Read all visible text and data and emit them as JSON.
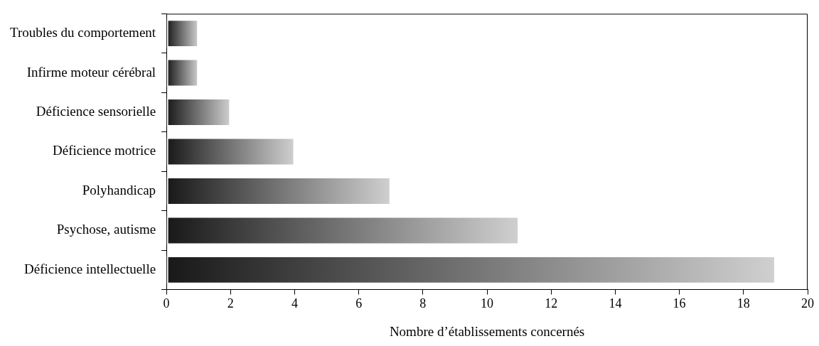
{
  "chart_data": {
    "type": "bar",
    "orientation": "horizontal",
    "xlabel": "Nombre d’établissements concernés",
    "categories": [
      "Troubles du comportement",
      "Infirme moteur cérébral",
      "Déficience sensorielle",
      "Déficience motrice",
      "Polyhandicap",
      "Psychose, autisme",
      "Déficience intellectuelle"
    ],
    "values": [
      1,
      1,
      2,
      4,
      7,
      11,
      19
    ],
    "color": "#7a7a7a",
    "xlim": [
      0,
      20
    ],
    "xticks": [
      0,
      2,
      4,
      6,
      8,
      10,
      12,
      14,
      16,
      18,
      20
    ],
    "grid": false,
    "legend": false
  }
}
